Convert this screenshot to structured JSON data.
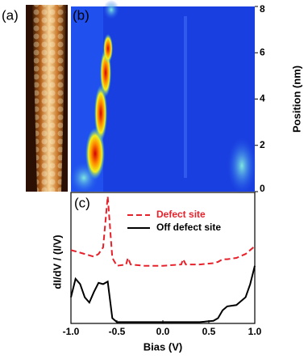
{
  "chart_data": [
    {
      "type": "image",
      "panel_label": "(a)"
    },
    {
      "type": "heatmap",
      "panel_label": "(b)",
      "ylabel": "Position (nm)",
      "ylim": [
        0,
        8
      ],
      "yticks": [
        0,
        2,
        4,
        6,
        8
      ]
    },
    {
      "type": "line",
      "panel_label": "(c)",
      "xlabel": "Bias (V)",
      "ylabel": "dI/dV / (I/V)",
      "xlim": [
        -1,
        1
      ],
      "xticks": [
        {
          "value": -1,
          "label": "-1.0"
        },
        -0.5,
        {
          "value": 0,
          "label": "0.0"
        },
        0.5,
        {
          "value": 1,
          "label": "1.0"
        }
      ],
      "ylim": [
        0,
        10
      ],
      "legend": "upper center",
      "x": [
        -1.0,
        -0.95,
        -0.9,
        -0.85,
        -0.8,
        -0.75,
        -0.7,
        -0.65,
        -0.6,
        -0.55,
        -0.5,
        -0.4,
        -0.38,
        -0.35,
        -0.2,
        0.0,
        0.2,
        0.22,
        0.25,
        0.4,
        0.55,
        0.6,
        0.65,
        0.7,
        0.8,
        0.9,
        0.95,
        1.0
      ],
      "series": [
        {
          "name": "Defect site",
          "color": "#e8202a",
          "dash": true,
          "values": [
            5.6,
            5.5,
            5.4,
            5.3,
            5.2,
            5.1,
            5.3,
            5.8,
            9.7,
            5.0,
            4.4,
            4.5,
            5.0,
            4.5,
            4.4,
            4.4,
            4.5,
            4.9,
            4.5,
            4.5,
            4.6,
            4.7,
            4.9,
            4.9,
            5.0,
            5.3,
            5.6,
            5.9
          ]
        },
        {
          "name": "Off defect site",
          "color": "#000000",
          "dash": false,
          "values": [
            2.0,
            3.4,
            3.0,
            2.0,
            1.6,
            2.4,
            3.1,
            3.0,
            3.2,
            0.4,
            0.1,
            0.1,
            0.1,
            0.1,
            0.1,
            0.1,
            0.1,
            0.1,
            0.1,
            0.1,
            0.2,
            0.4,
            1.0,
            1.3,
            1.4,
            2.0,
            3.0,
            4.4
          ]
        }
      ]
    }
  ]
}
